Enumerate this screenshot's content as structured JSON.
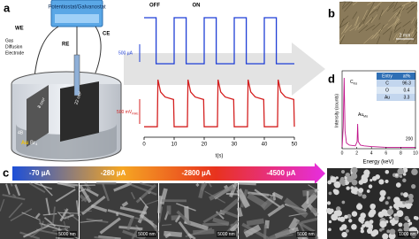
{
  "panel_a": {
    "label": "a",
    "instrument": "Potentiostat/Galvanostat",
    "we": "WE",
    "gde": [
      "Gas",
      "Diffusion",
      "Electrode"
    ],
    "re": "RE",
    "ce": "CE",
    "area_small": "8 cm²",
    "area_large": "22 cm²",
    "precursor": {
      "prefix": "4B",
      "metal": "Au",
      "ion": "Br",
      "sub": "4"
    }
  },
  "chart_data": {
    "type": "line",
    "xlabel": "t(s)",
    "xlim": [
      0,
      50
    ],
    "xticks": [
      0,
      10,
      20,
      30,
      40,
      50
    ],
    "ylim": [
      0,
      1
    ],
    "annotations": {
      "off": "OFF",
      "on": "ON"
    },
    "scale_current": "500 µA",
    "scale_potential": {
      "text": "500 mV",
      "sub": "RHE"
    },
    "series": [
      {
        "color": "#1f3fd6",
        "x": [
          0,
          4,
          4,
          10,
          10,
          14,
          14,
          20,
          20,
          24,
          24,
          30,
          30,
          34,
          34,
          40,
          40,
          44,
          44,
          50
        ],
        "values": [
          1,
          1,
          0,
          0,
          1,
          1,
          0,
          0,
          1,
          1,
          0,
          0,
          1,
          1,
          0,
          0,
          1,
          1,
          0,
          0
        ]
      },
      {
        "color": "#d42020",
        "x": [
          0,
          4.4,
          4.6,
          5.5,
          7,
          9.8,
          10,
          14.4,
          14.6,
          15.5,
          17,
          19.8,
          20,
          24.4,
          24.6,
          25.5,
          27,
          29.8,
          30,
          34.4,
          34.6,
          35.5,
          37,
          39.8,
          40,
          44.4,
          44.6,
          45.5,
          47,
          49.8,
          50
        ],
        "values": [
          0.05,
          0.05,
          1,
          0.75,
          0.65,
          0.6,
          0.05,
          0.05,
          1,
          0.75,
          0.65,
          0.6,
          0.05,
          0.05,
          1,
          0.75,
          0.65,
          0.6,
          0.05,
          0.05,
          1,
          0.75,
          0.65,
          0.6,
          0.05,
          0.05,
          1,
          0.75,
          0.65,
          0.6,
          0.05
        ]
      }
    ]
  },
  "panel_b": {
    "label": "b",
    "scale": "2 mm"
  },
  "panel_d": {
    "label": "d",
    "type": "line",
    "xlabel": "Energy (keV)",
    "ylabel": "Intensity (counts)",
    "xlim": [
      0,
      10
    ],
    "xticks": [
      0,
      2,
      4,
      6,
      8,
      10
    ],
    "ylim": [
      0,
      1
    ],
    "color": "#c0138a",
    "x": [
      0,
      0.15,
      0.28,
      0.4,
      0.6,
      1.0,
      1.8,
      2.05,
      2.12,
      2.2,
      2.5,
      3,
      4,
      6,
      8,
      10
    ],
    "values": [
      0.02,
      0.3,
      1,
      0.25,
      0.08,
      0.05,
      0.04,
      0.1,
      0.35,
      0.1,
      0.05,
      0.04,
      0.03,
      0.02,
      0.02,
      0.02
    ],
    "peaks": [
      {
        "label": "C",
        "sub": "Kα"
      },
      {
        "label": "Au",
        "sub": "Mα"
      }
    ],
    "annotation": "200",
    "table": {
      "header": [
        "Entry",
        "at%"
      ],
      "rows": [
        [
          "C",
          96.3
        ],
        [
          "O",
          0.4
        ],
        [
          "Au",
          3.3
        ]
      ]
    }
  },
  "panel_c": {
    "label": "c",
    "currents": [
      "-70 µA",
      "-280 µA",
      "-2800 µA",
      "-4500 µA"
    ],
    "scale_bars": [
      "5000 nm",
      "5000 nm",
      "5000 nm",
      "5000 nm",
      "1000 nm"
    ]
  }
}
